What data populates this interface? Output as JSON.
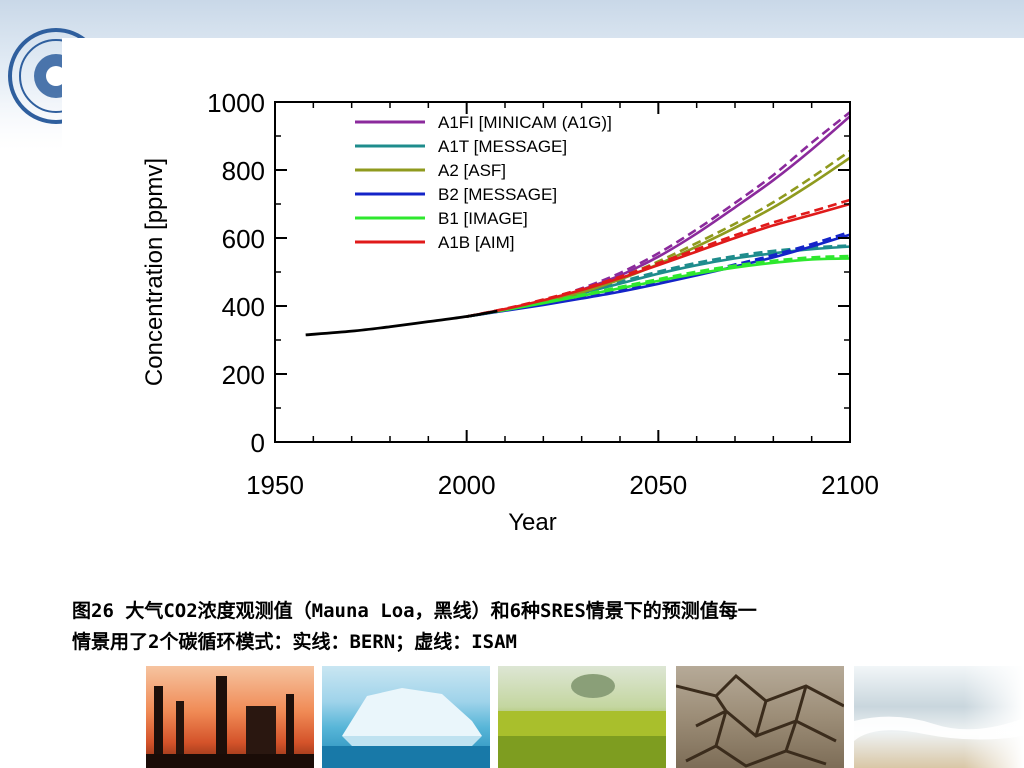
{
  "caption": {
    "line1": "图26 大气CO2浓度观测值（Mauna Loa，黑线）和6种SRES情景下的预测值每一",
    "line2": "情景用了2个碳循环模式：实线：BERN；虚线：ISAM"
  },
  "logo": {
    "icon": "china-meteorological-emblem-icon",
    "color": "#2f5f9e"
  },
  "photos": [
    "industry-smokestacks-photo",
    "iceberg-photo",
    "flower-field-photo",
    "drought-cracked-earth-photo",
    "beach-waves-photo"
  ],
  "chart_data": {
    "type": "line",
    "title": "",
    "xlabel": "Year",
    "ylabel": "Concentration [ppmv]",
    "xlim": [
      1950,
      2100
    ],
    "ylim": [
      0,
      1000
    ],
    "xticks": [
      1950,
      2000,
      2050,
      2100
    ],
    "yticks": [
      0,
      200,
      400,
      600,
      800,
      1000
    ],
    "legend_position": "top-left",
    "observed": {
      "color": "#000000",
      "x": [
        1958,
        1970,
        1980,
        1990,
        2000,
        2008
      ],
      "y": [
        315,
        326,
        339,
        354,
        369,
        385
      ]
    },
    "x": [
      2000,
      2010,
      2020,
      2030,
      2040,
      2050,
      2060,
      2070,
      2080,
      2090,
      2100
    ],
    "series": [
      {
        "name": "A1FI [MINICAM (A1G)]",
        "color": "#8b2a9c",
        "bern": [
          369,
          390,
          415,
          448,
          490,
          545,
          613,
          690,
          770,
          860,
          958
        ],
        "isam": [
          369,
          391,
          417,
          452,
          497,
          555,
          625,
          703,
          785,
          880,
          970
        ]
      },
      {
        "name": "A1T [MESSAGE]",
        "color": "#1e8c8c",
        "bern": [
          369,
          388,
          410,
          437,
          466,
          495,
          520,
          540,
          555,
          567,
          575
        ],
        "isam": [
          369,
          389,
          412,
          440,
          471,
          501,
          527,
          547,
          562,
          572,
          578
        ]
      },
      {
        "name": "A2 [ASF]",
        "color": "#8f9a1e",
        "bern": [
          369,
          389,
          411,
          440,
          478,
          523,
          575,
          630,
          690,
          760,
          836
        ],
        "isam": [
          369,
          390,
          413,
          444,
          484,
          531,
          585,
          642,
          705,
          778,
          856
        ]
      },
      {
        "name": "B2 [MESSAGE]",
        "color": "#1424c8",
        "bern": [
          369,
          386,
          403,
          422,
          442,
          465,
          490,
          516,
          543,
          575,
          610
        ],
        "isam": [
          369,
          387,
          405,
          425,
          446,
          470,
          495,
          522,
          550,
          582,
          618
        ]
      },
      {
        "name": "B1 [IMAGE]",
        "color": "#2ee82e",
        "bern": [
          369,
          388,
          408,
          430,
          452,
          474,
          495,
          513,
          527,
          537,
          540
        ],
        "isam": [
          369,
          389,
          410,
          433,
          456,
          479,
          501,
          519,
          533,
          543,
          547
        ]
      },
      {
        "name": "A1B [AIM]",
        "color": "#e01a1a",
        "bern": [
          369,
          391,
          417,
          447,
          482,
          520,
          560,
          600,
          637,
          668,
          700
        ],
        "isam": [
          369,
          392,
          419,
          450,
          486,
          526,
          567,
          608,
          646,
          678,
          712
        ]
      }
    ]
  }
}
